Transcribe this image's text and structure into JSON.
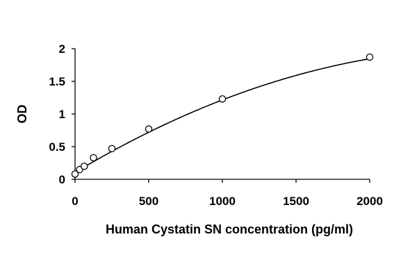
{
  "chart_data": {
    "type": "scatter",
    "title": "",
    "xlabel": "Human Cystatin SN concentration (pg/ml)",
    "ylabel": "OD",
    "xlim": [
      0,
      2000
    ],
    "ylim": [
      0,
      2
    ],
    "x_ticks": [
      "0",
      "500",
      "1000",
      "1500",
      "2000"
    ],
    "y_ticks": [
      "0",
      "0.5",
      "1",
      "1.5",
      "2"
    ],
    "grid": false,
    "legend": "none",
    "series": [
      {
        "marker": "open-circle",
        "points": [
          {
            "x": 0,
            "y": 0.08
          },
          {
            "x": 31.25,
            "y": 0.15
          },
          {
            "x": 62.5,
            "y": 0.2
          },
          {
            "x": 125,
            "y": 0.33
          },
          {
            "x": 250,
            "y": 0.47
          },
          {
            "x": 500,
            "y": 0.77
          },
          {
            "x": 1000,
            "y": 1.23
          },
          {
            "x": 2000,
            "y": 1.87
          }
        ]
      }
    ],
    "trendline": {
      "type": "polynomial-fit",
      "coefficients": {
        "a": -2.4e-07,
        "b": 0.00135,
        "c": 0.105
      }
    },
    "colors": {
      "line": "#000000",
      "marker_stroke": "#000000",
      "marker_fill": "#ffffff"
    }
  }
}
